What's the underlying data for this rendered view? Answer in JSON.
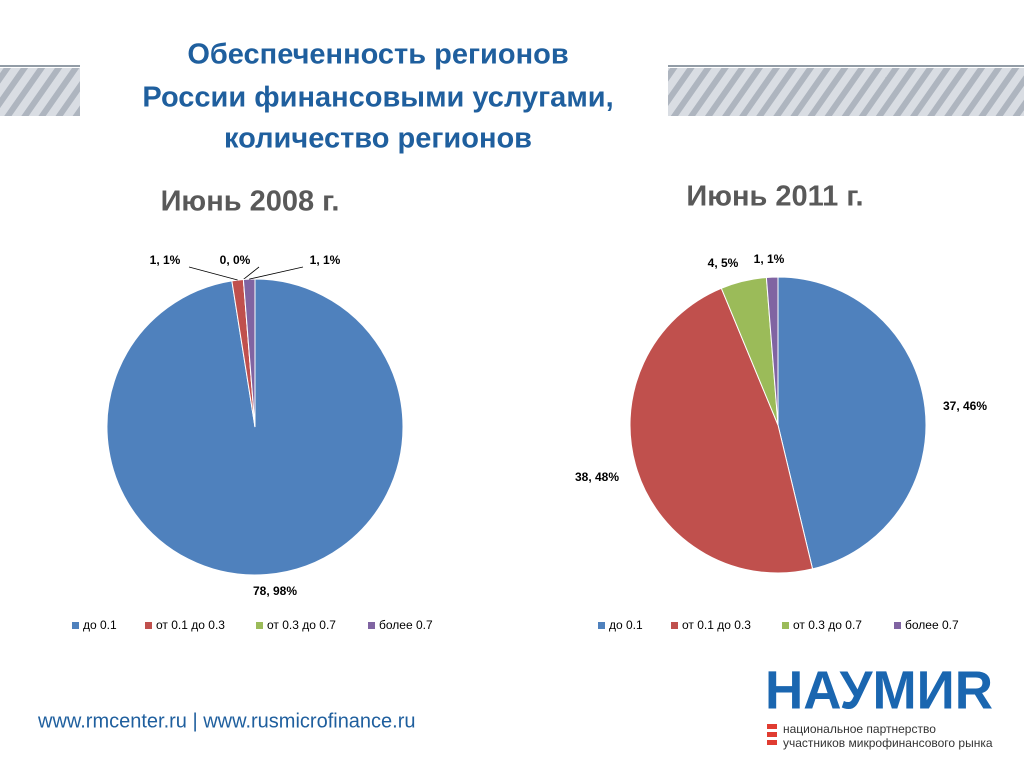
{
  "header": {
    "title_lines": [
      "Обеспеченность регионов",
      "России финансовыми услугами,",
      "количество регионов"
    ]
  },
  "chart_data": [
    {
      "type": "pie",
      "title": "Июнь 2008 г.",
      "categories": [
        "до 0.1",
        "от 0.1 до 0.3",
        "от 0.3 до 0.7",
        "более 0.7"
      ],
      "values": [
        78,
        1,
        0,
        1
      ],
      "value_labels": [
        "78, 98%",
        "1, 1%",
        "0, 0%",
        "1, 1%"
      ],
      "colors": [
        "#4f81bd",
        "#c0504d",
        "#9bbb59",
        "#8064a2"
      ],
      "legend": "bottom"
    },
    {
      "type": "pie",
      "title": "Июнь 2011 г.",
      "categories": [
        "до 0.1",
        "от 0.1 до 0.3",
        "от 0.3 до 0.7",
        "более 0.7"
      ],
      "values": [
        37,
        38,
        4,
        1
      ],
      "value_labels": [
        "37, 46%",
        "38, 48%",
        "4, 5%",
        "1, 1%"
      ],
      "colors": [
        "#4f81bd",
        "#c0504d",
        "#9bbb59",
        "#8064a2"
      ],
      "legend": "bottom"
    }
  ],
  "footer": {
    "links": "www.rmcenter.ru | www.rusmicrofinance.ru",
    "logo": {
      "name": "НАУМИR",
      "line1": "национальное партнерство",
      "line2": "участников микрофинансового рынка"
    }
  }
}
